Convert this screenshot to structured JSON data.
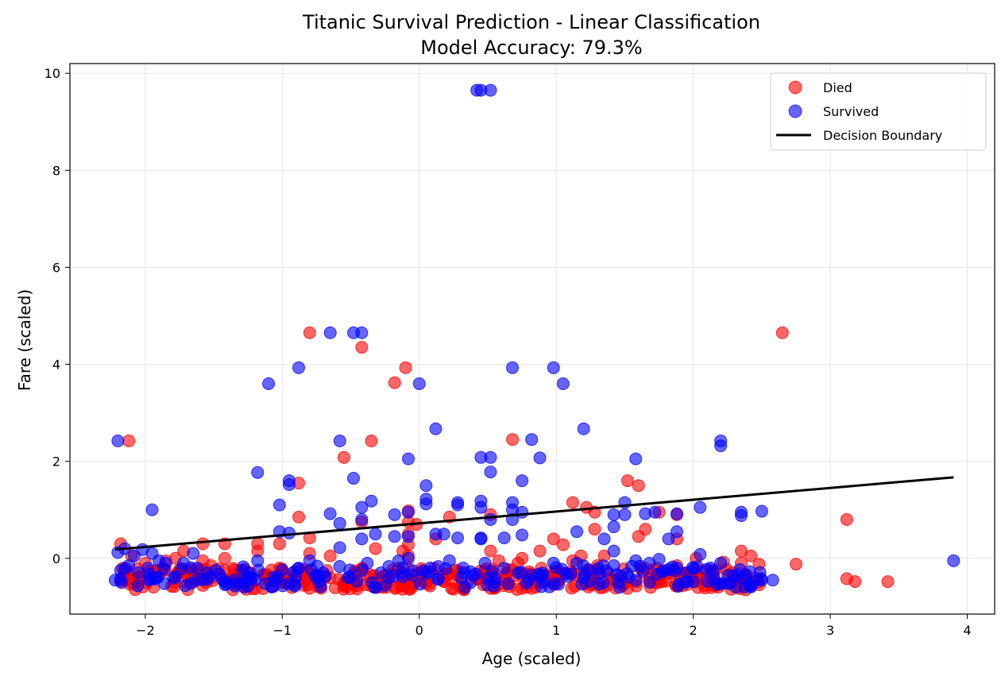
{
  "chart_data": {
    "type": "scatter",
    "title": "Titanic Survival Prediction - Linear Classification",
    "subtitle": "Model Accuracy: 79.3%",
    "xlabel": "Age (scaled)",
    "ylabel": "Fare (scaled)",
    "xlim": [
      -2.55,
      4.2
    ],
    "ylim": [
      -1.15,
      10.2
    ],
    "xticks": [
      -2,
      -1,
      0,
      1,
      2,
      3,
      4
    ],
    "yticks": [
      0,
      2,
      4,
      6,
      8,
      10
    ],
    "grid": true,
    "legend_position": "top-right",
    "colors": {
      "died": "#ff0000",
      "survived": "#0000ff",
      "boundary": "#000000"
    },
    "series": [
      {
        "name": "Died",
        "color": "#ff0000",
        "points": [
          [
            -2.18,
            0.3
          ],
          [
            -2.12,
            2.42
          ],
          [
            -2.1,
            0.05
          ],
          [
            -2.15,
            -0.25
          ],
          [
            -2.12,
            -0.4
          ],
          [
            -2.0,
            -0.1
          ],
          [
            -1.85,
            -0.05
          ],
          [
            -1.78,
            0.0
          ],
          [
            -1.72,
            0.15
          ],
          [
            -1.65,
            -0.22
          ],
          [
            -1.58,
            0.3
          ],
          [
            -1.58,
            -0.05
          ],
          [
            -1.52,
            -0.15
          ],
          [
            -1.42,
            0.3
          ],
          [
            -1.42,
            0.0
          ],
          [
            -1.42,
            -0.25
          ],
          [
            -1.18,
            0.3
          ],
          [
            -1.18,
            0.15
          ],
          [
            -1.12,
            -0.4
          ],
          [
            -1.02,
            0.3
          ],
          [
            -1.02,
            -0.2
          ],
          [
            -1.0,
            -0.5
          ],
          [
            -0.95,
            -0.45
          ],
          [
            -0.92,
            -0.3
          ],
          [
            -0.88,
            1.55
          ],
          [
            -0.88,
            0.85
          ],
          [
            -0.8,
            4.65
          ],
          [
            -0.8,
            0.42
          ],
          [
            -0.8,
            0.1
          ],
          [
            -0.8,
            -0.62
          ],
          [
            -0.72,
            -0.58
          ],
          [
            -0.65,
            0.05
          ],
          [
            -0.65,
            -0.4
          ],
          [
            -0.55,
            2.08
          ],
          [
            -0.55,
            -0.5
          ],
          [
            -0.48,
            -0.42
          ],
          [
            -0.42,
            4.35
          ],
          [
            -0.42,
            0.75
          ],
          [
            -0.35,
            2.42
          ],
          [
            -0.32,
            0.2
          ],
          [
            -0.32,
            -0.58
          ],
          [
            -0.25,
            -0.48
          ],
          [
            -0.18,
            3.62
          ],
          [
            -0.12,
            0.15
          ],
          [
            -0.1,
            3.93
          ],
          [
            -0.08,
            0.98
          ],
          [
            -0.08,
            0.75
          ],
          [
            -0.08,
            0.5
          ],
          [
            -0.08,
            0.28
          ],
          [
            -0.08,
            0.05
          ],
          [
            -0.08,
            -0.2
          ],
          [
            -0.08,
            -0.45
          ],
          [
            -0.08,
            -0.62
          ],
          [
            -0.02,
            0.7
          ],
          [
            0.02,
            -0.3
          ],
          [
            0.05,
            -0.5
          ],
          [
            0.12,
            0.4
          ],
          [
            0.18,
            -0.48
          ],
          [
            0.22,
            0.85
          ],
          [
            0.28,
            -0.35
          ],
          [
            0.35,
            -0.5
          ],
          [
            0.42,
            -0.42
          ],
          [
            0.52,
            0.9
          ],
          [
            0.52,
            0.15
          ],
          [
            0.52,
            -0.62
          ],
          [
            0.58,
            -0.05
          ],
          [
            0.62,
            -0.45
          ],
          [
            0.68,
            2.45
          ],
          [
            0.72,
            -0.1
          ],
          [
            0.75,
            0.0
          ],
          [
            0.75,
            -0.62
          ],
          [
            0.82,
            -0.62
          ],
          [
            0.88,
            0.15
          ],
          [
            0.92,
            -0.35
          ],
          [
            0.98,
            0.4
          ],
          [
            1.02,
            -0.45
          ],
          [
            1.05,
            0.28
          ],
          [
            1.12,
            1.15
          ],
          [
            1.12,
            -0.05
          ],
          [
            1.18,
            0.05
          ],
          [
            1.22,
            1.05
          ],
          [
            1.22,
            -0.5
          ],
          [
            1.28,
            0.95
          ],
          [
            1.28,
            0.6
          ],
          [
            1.3,
            -0.15
          ],
          [
            1.35,
            0.05
          ],
          [
            1.38,
            -0.3
          ],
          [
            1.42,
            -0.45
          ],
          [
            1.52,
            1.6
          ],
          [
            1.52,
            -0.62
          ],
          [
            1.6,
            1.5
          ],
          [
            1.6,
            0.45
          ],
          [
            1.65,
            0.6
          ],
          [
            1.68,
            -0.45
          ],
          [
            1.75,
            0.95
          ],
          [
            1.75,
            -0.4
          ],
          [
            1.85,
            -0.25
          ],
          [
            1.88,
            0.9
          ],
          [
            1.88,
            0.4
          ],
          [
            1.88,
            -0.15
          ],
          [
            1.92,
            -0.3
          ],
          [
            2.02,
            0.0
          ],
          [
            2.02,
            -0.48
          ],
          [
            2.12,
            -0.38
          ],
          [
            2.22,
            -0.08
          ],
          [
            2.28,
            -0.5
          ],
          [
            2.35,
            0.15
          ],
          [
            2.35,
            -0.1
          ],
          [
            2.42,
            0.05
          ],
          [
            2.42,
            -0.5
          ],
          [
            2.48,
            -0.12
          ],
          [
            2.65,
            4.65
          ],
          [
            2.75,
            -0.12
          ],
          [
            3.12,
            0.8
          ],
          [
            3.12,
            -0.42
          ],
          [
            3.18,
            -0.48
          ],
          [
            3.42,
            -0.48
          ]
        ]
      },
      {
        "name": "Survived",
        "color": "#0000ff",
        "points": [
          [
            -2.22,
            -0.45
          ],
          [
            -2.2,
            2.42
          ],
          [
            -2.2,
            0.12
          ],
          [
            -2.18,
            -0.25
          ],
          [
            -2.15,
            0.2
          ],
          [
            -2.12,
            -0.15
          ],
          [
            -2.08,
            0.05
          ],
          [
            -2.05,
            -0.3
          ],
          [
            -2.02,
            0.18
          ],
          [
            -1.98,
            -0.2
          ],
          [
            -1.95,
            1.0
          ],
          [
            -1.95,
            0.1
          ],
          [
            -1.92,
            -0.4
          ],
          [
            -1.9,
            -0.05
          ],
          [
            -1.85,
            -0.1
          ],
          [
            -1.78,
            -0.38
          ],
          [
            -1.72,
            -0.1
          ],
          [
            -1.65,
            0.1
          ],
          [
            -1.62,
            -0.2
          ],
          [
            -1.55,
            -0.3
          ],
          [
            -1.35,
            -0.45
          ],
          [
            -1.28,
            -0.5
          ],
          [
            -1.18,
            1.77
          ],
          [
            -1.18,
            -0.05
          ],
          [
            -1.1,
            3.6
          ],
          [
            -1.05,
            -0.45
          ],
          [
            -1.02,
            1.1
          ],
          [
            -1.02,
            0.55
          ],
          [
            -0.95,
            1.6
          ],
          [
            -0.95,
            1.52
          ],
          [
            -0.95,
            0.52
          ],
          [
            -0.88,
            3.93
          ],
          [
            -0.88,
            -0.2
          ],
          [
            -0.8,
            -0.05
          ],
          [
            -0.75,
            -0.4
          ],
          [
            -0.7,
            -0.3
          ],
          [
            -0.65,
            4.65
          ],
          [
            -0.65,
            0.92
          ],
          [
            -0.58,
            2.42
          ],
          [
            -0.58,
            0.72
          ],
          [
            -0.58,
            0.22
          ],
          [
            -0.52,
            -0.4
          ],
          [
            -0.48,
            4.65
          ],
          [
            -0.48,
            1.65
          ],
          [
            -0.42,
            4.65
          ],
          [
            -0.42,
            1.05
          ],
          [
            -0.42,
            0.8
          ],
          [
            -0.42,
            0.4
          ],
          [
            -0.38,
            -0.1
          ],
          [
            -0.35,
            1.18
          ],
          [
            -0.32,
            0.5
          ],
          [
            -0.32,
            -0.6
          ],
          [
            -0.28,
            -0.3
          ],
          [
            -0.22,
            -0.4
          ],
          [
            -0.18,
            0.9
          ],
          [
            -0.18,
            0.45
          ],
          [
            -0.15,
            -0.05
          ],
          [
            -0.12,
            -0.2
          ],
          [
            -0.08,
            2.05
          ],
          [
            -0.08,
            0.95
          ],
          [
            -0.08,
            0.45
          ],
          [
            -0.08,
            0.0
          ],
          [
            -0.05,
            -0.35
          ],
          [
            0.0,
            3.6
          ],
          [
            0.05,
            1.5
          ],
          [
            0.05,
            1.22
          ],
          [
            0.05,
            1.12
          ],
          [
            0.08,
            -0.2
          ],
          [
            0.12,
            2.67
          ],
          [
            0.12,
            0.5
          ],
          [
            0.18,
            0.5
          ],
          [
            0.22,
            -0.05
          ],
          [
            0.28,
            1.15
          ],
          [
            0.28,
            1.1
          ],
          [
            0.28,
            0.42
          ],
          [
            0.32,
            -0.2
          ],
          [
            0.42,
            9.65
          ],
          [
            0.45,
            9.65
          ],
          [
            0.45,
            2.08
          ],
          [
            0.45,
            1.18
          ],
          [
            0.45,
            1.05
          ],
          [
            0.45,
            0.42
          ],
          [
            0.45,
            0.4
          ],
          [
            0.48,
            -0.1
          ],
          [
            0.52,
            9.65
          ],
          [
            0.52,
            2.08
          ],
          [
            0.52,
            1.78
          ],
          [
            0.52,
            0.8
          ],
          [
            0.55,
            -0.4
          ],
          [
            0.62,
            0.42
          ],
          [
            0.68,
            3.93
          ],
          [
            0.68,
            1.15
          ],
          [
            0.68,
            1.0
          ],
          [
            0.68,
            0.8
          ],
          [
            0.72,
            -0.3
          ],
          [
            0.75,
            1.6
          ],
          [
            0.75,
            0.95
          ],
          [
            0.75,
            0.48
          ],
          [
            0.82,
            2.45
          ],
          [
            0.82,
            -0.35
          ],
          [
            0.88,
            2.07
          ],
          [
            0.9,
            -0.3
          ],
          [
            0.98,
            3.93
          ],
          [
            0.98,
            -0.1
          ],
          [
            1.05,
            3.6
          ],
          [
            1.15,
            0.55
          ],
          [
            1.15,
            -0.1
          ],
          [
            1.2,
            2.67
          ],
          [
            1.2,
            -0.4
          ],
          [
            1.35,
            0.4
          ],
          [
            1.42,
            0.9
          ],
          [
            1.42,
            0.65
          ],
          [
            1.42,
            0.15
          ],
          [
            1.42,
            -0.15
          ],
          [
            1.5,
            1.15
          ],
          [
            1.5,
            0.9
          ],
          [
            1.58,
            2.05
          ],
          [
            1.58,
            -0.05
          ],
          [
            1.58,
            -0.45
          ],
          [
            1.65,
            0.92
          ],
          [
            1.68,
            -0.1
          ],
          [
            1.72,
            0.95
          ],
          [
            1.75,
            -0.02
          ],
          [
            1.82,
            0.4
          ],
          [
            1.88,
            0.92
          ],
          [
            1.88,
            0.55
          ],
          [
            1.88,
            -0.2
          ],
          [
            1.95,
            -0.3
          ],
          [
            2.05,
            1.05
          ],
          [
            2.05,
            0.08
          ],
          [
            2.2,
            2.42
          ],
          [
            2.2,
            2.32
          ],
          [
            2.2,
            -0.1
          ],
          [
            2.35,
            0.95
          ],
          [
            2.35,
            0.88
          ],
          [
            2.5,
            0.97
          ],
          [
            2.5,
            -0.45
          ],
          [
            2.58,
            -0.45
          ],
          [
            3.9,
            -0.05
          ]
        ]
      }
    ],
    "cluster": {
      "died": {
        "x_range": [
          -2.2,
          2.5
        ],
        "y_range": [
          -0.65,
          -0.2
        ],
        "count": 320,
        "seed": 7
      },
      "survived": {
        "x_range": [
          -2.2,
          2.5
        ],
        "y_range": [
          -0.6,
          -0.15
        ],
        "count": 170,
        "seed": 13
      }
    },
    "decision_boundary": {
      "name": "Decision Boundary",
      "x": [
        -2.22,
        3.9
      ],
      "y": [
        0.18,
        1.67
      ]
    }
  }
}
